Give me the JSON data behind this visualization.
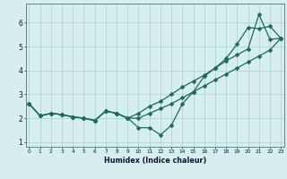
{
  "xlabel": "Humidex (Indice chaleur)",
  "x": [
    0,
    1,
    2,
    3,
    4,
    5,
    6,
    7,
    8,
    9,
    10,
    11,
    12,
    13,
    14,
    15,
    16,
    17,
    18,
    19,
    20,
    21,
    22,
    23
  ],
  "line_jagged": [
    2.6,
    2.1,
    2.2,
    2.15,
    2.05,
    2.0,
    1.9,
    2.3,
    2.2,
    2.0,
    1.6,
    1.6,
    1.3,
    1.7,
    2.6,
    3.1,
    3.75,
    4.1,
    4.5,
    5.1,
    5.8,
    5.75,
    5.85,
    5.35
  ],
  "line_upper1": [
    2.6,
    2.1,
    2.2,
    2.15,
    2.05,
    2.0,
    1.9,
    2.3,
    2.2,
    2.0,
    2.2,
    2.5,
    2.7,
    3.0,
    3.3,
    3.55,
    3.8,
    4.1,
    4.4,
    4.65,
    4.9,
    6.35,
    5.3,
    5.35
  ],
  "line_upper2": [
    2.6,
    2.1,
    2.2,
    2.15,
    2.05,
    2.0,
    1.9,
    2.3,
    2.2,
    2.0,
    2.0,
    2.2,
    2.4,
    2.6,
    2.85,
    3.1,
    3.35,
    3.6,
    3.85,
    4.1,
    4.35,
    4.6,
    4.85,
    5.35
  ],
  "bg_color": "#d6eeee",
  "grid_color": "#aed4d4",
  "line_color": "#1a6b5a",
  "ylim": [
    0.8,
    6.8
  ],
  "xlim": [
    -0.3,
    23.3
  ],
  "yticks": [
    1,
    2,
    3,
    4,
    5,
    6
  ],
  "xticks": [
    0,
    1,
    2,
    3,
    4,
    5,
    6,
    7,
    8,
    9,
    10,
    11,
    12,
    13,
    14,
    15,
    16,
    17,
    18,
    19,
    20,
    21,
    22,
    23
  ]
}
